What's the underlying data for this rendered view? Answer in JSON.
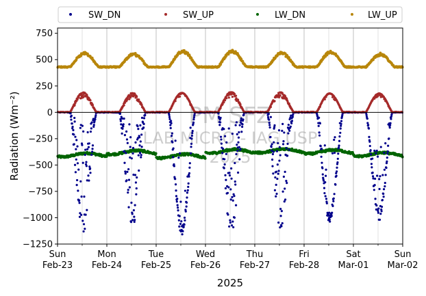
{
  "chart_data": {
    "type": "scatter",
    "ylabel": "Radiation (Wm⁻²)",
    "xlabel": "2025",
    "ylim": [
      -1250,
      800
    ],
    "xlim": [
      "2025-02-23",
      "2025-03-02"
    ],
    "grid": "x-only",
    "legend_position": "top",
    "y_ticks": [
      {
        "value": 750,
        "label": "750"
      },
      {
        "value": 500,
        "label": "500"
      },
      {
        "value": 250,
        "label": "250"
      },
      {
        "value": 0,
        "label": "0"
      },
      {
        "value": -250,
        "label": "−250"
      },
      {
        "value": -500,
        "label": "−500"
      },
      {
        "value": -750,
        "label": "−750"
      },
      {
        "value": -1000,
        "label": "−1000"
      },
      {
        "value": -1250,
        "label": "−1250"
      }
    ],
    "x_ticks": [
      {
        "day": "Sun",
        "date": "Feb-23"
      },
      {
        "day": "Mon",
        "date": "Feb-24"
      },
      {
        "day": "Tue",
        "date": "Feb-25"
      },
      {
        "day": "Wed",
        "date": "Feb-26"
      },
      {
        "day": "Thu",
        "date": "Feb-27"
      },
      {
        "day": "Fri",
        "date": "Feb-28"
      },
      {
        "day": "Sat",
        "date": "Mar-01"
      },
      {
        "day": "Sun",
        "date": "Mar-02"
      }
    ],
    "series": [
      {
        "name": "SW_DN",
        "color": "#00008b",
        "daily_min": [
          -1150,
          -1100,
          -1160,
          -1170,
          -1100,
          -1050,
          -1030
        ]
      },
      {
        "name": "SW_UP",
        "color": "#a52a2a",
        "daily_max": [
          190,
          185,
          185,
          195,
          190,
          180,
          180
        ]
      },
      {
        "name": "LW_DN",
        "color": "#006400",
        "base": -390
      },
      {
        "name": "LW_UP",
        "color": "#b8860b",
        "night_base": 430,
        "daily_max": [
          570,
          560,
          590,
          590,
          570,
          580,
          560
        ]
      }
    ],
    "watermark": {
      "line1": "PM SFZ",
      "line2": "LAB MICRO - IAG USP",
      "line3": "2025"
    }
  }
}
